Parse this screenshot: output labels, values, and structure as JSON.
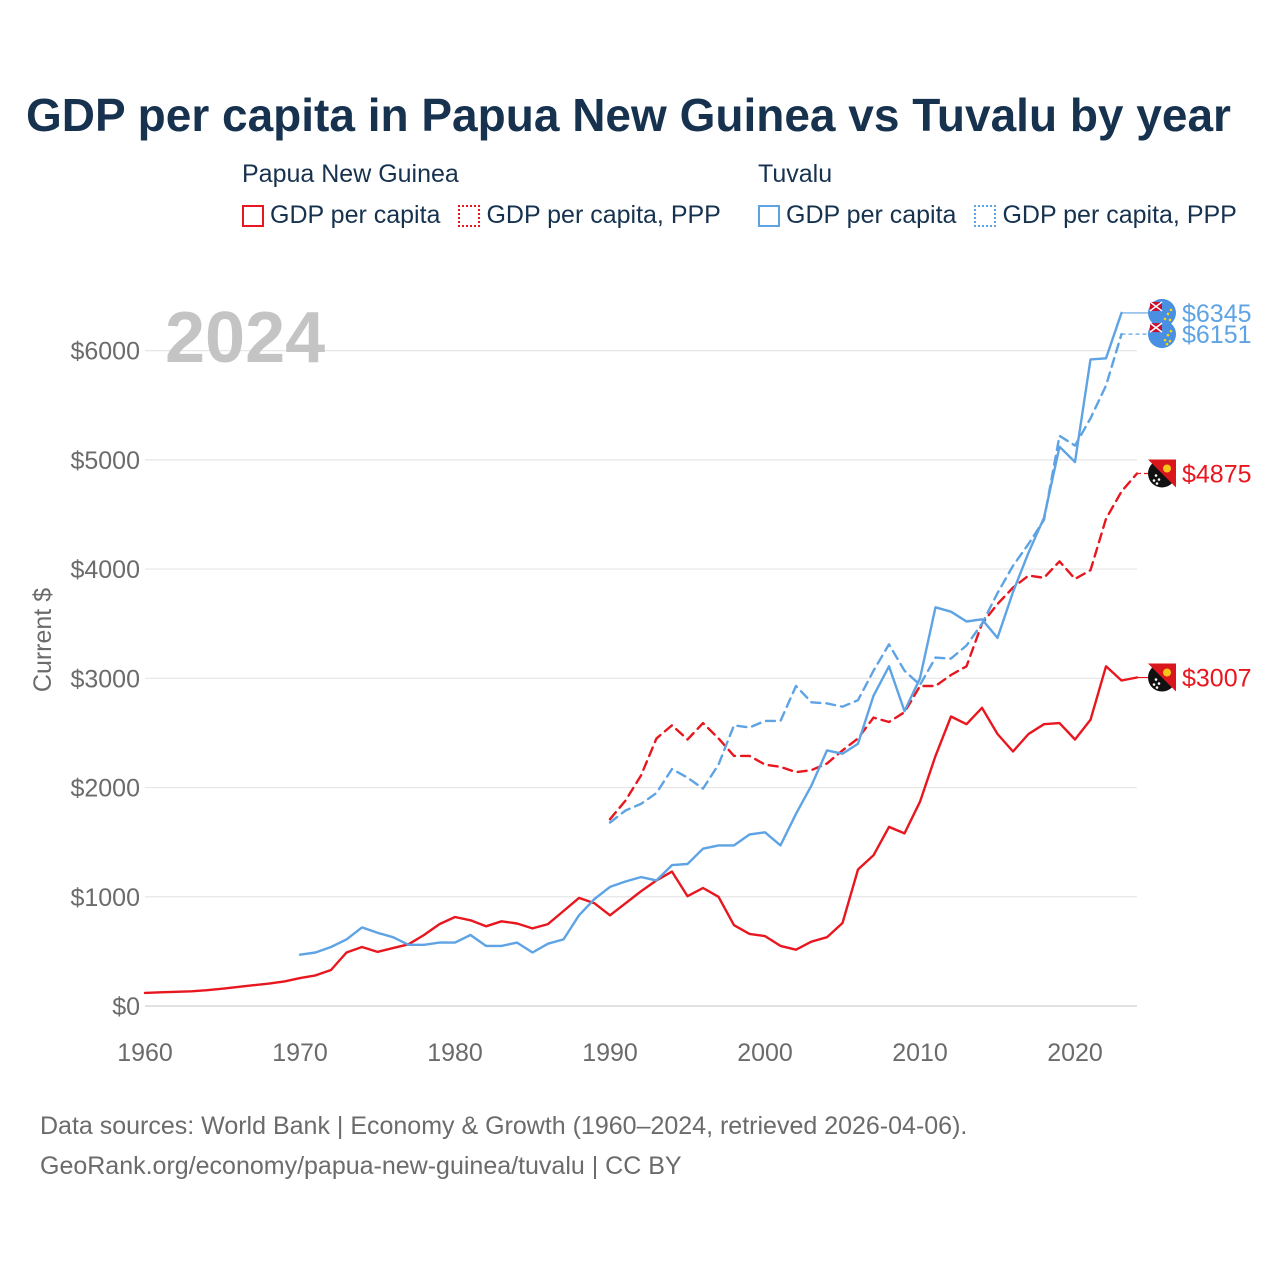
{
  "title": "GDP per capita in Papua New Guinea vs Tuvalu by year",
  "legend": {
    "groups": [
      {
        "country": "Papua New Guinea",
        "color": "#e8171f",
        "items": [
          {
            "label": "GDP per capita",
            "style": "solid"
          },
          {
            "label": "GDP per capita, PPP",
            "style": "dotted"
          }
        ]
      },
      {
        "country": "Tuvalu",
        "color": "#5ea3e4",
        "items": [
          {
            "label": "GDP per capita",
            "style": "solid"
          },
          {
            "label": "GDP per capita, PPP",
            "style": "dotted"
          }
        ]
      }
    ]
  },
  "year_watermark": "2024",
  "footer": {
    "line1": "Data sources: World Bank | Economy & Growth (1960–2024, retrieved 2026-04-06).",
    "line2": "GeoRank.org/economy/papua-new-guinea/tuvalu | CC BY"
  },
  "chart_data": {
    "type": "line",
    "title": "GDP per capita in Papua New Guinea vs Tuvalu by year",
    "xlabel": "",
    "ylabel": "Current $",
    "xlim": [
      1960,
      2024
    ],
    "ylim": [
      0,
      6500
    ],
    "xticks": [
      1960,
      1970,
      1980,
      1990,
      2000,
      2010,
      2020
    ],
    "xtick_labels": [
      "1960",
      "1970",
      "1980",
      "1990",
      "2000",
      "2010",
      "2020"
    ],
    "yticks": [
      0,
      1000,
      2000,
      3000,
      4000,
      5000,
      6000
    ],
    "ytick_labels": [
      "$0",
      "$1000",
      "$2000",
      "$3000",
      "$4000",
      "$5000",
      "$6000"
    ],
    "grid": true,
    "series": [
      {
        "name": "Papua New Guinea GDP per capita",
        "country": "Papua New Guinea",
        "color": "#e8171f",
        "dash": "solid",
        "end_label": "$3007",
        "x": [
          1960,
          1961,
          1962,
          1963,
          1964,
          1965,
          1966,
          1967,
          1968,
          1969,
          1970,
          1971,
          1972,
          1973,
          1974,
          1975,
          1976,
          1977,
          1978,
          1979,
          1980,
          1981,
          1982,
          1983,
          1984,
          1985,
          1986,
          1987,
          1988,
          1989,
          1990,
          1991,
          1992,
          1993,
          1994,
          1995,
          1996,
          1997,
          1998,
          1999,
          2000,
          2001,
          2002,
          2003,
          2004,
          2005,
          2006,
          2007,
          2008,
          2009,
          2010,
          2011,
          2012,
          2013,
          2014,
          2015,
          2016,
          2017,
          2018,
          2019,
          2020,
          2021,
          2022,
          2023,
          2024
        ],
        "y": [
          120,
          125,
          130,
          135,
          145,
          158,
          175,
          190,
          205,
          225,
          255,
          280,
          330,
          490,
          540,
          495,
          530,
          565,
          650,
          750,
          815,
          785,
          730,
          775,
          755,
          710,
          750,
          870,
          990,
          940,
          830,
          940,
          1050,
          1150,
          1230,
          1005,
          1080,
          1000,
          740,
          660,
          640,
          550,
          515,
          590,
          630,
          760,
          1250,
          1380,
          1640,
          1580,
          1870,
          2290,
          2650,
          2580,
          2730,
          2490,
          2330,
          2490,
          2580,
          2590,
          2440,
          2620,
          3110,
          2980,
          3007
        ]
      },
      {
        "name": "Papua New Guinea GDP per capita, PPP",
        "country": "Papua New Guinea",
        "color": "#e8171f",
        "dash": "dashed",
        "end_label": "$4875",
        "x": [
          1990,
          1991,
          1992,
          1993,
          1994,
          1995,
          1996,
          1997,
          1998,
          1999,
          2000,
          2001,
          2002,
          2003,
          2004,
          2005,
          2006,
          2007,
          2008,
          2009,
          2010,
          2011,
          2012,
          2013,
          2014,
          2015,
          2016,
          2017,
          2018,
          2019,
          2020,
          2021,
          2022,
          2023,
          2024
        ],
        "y": [
          1710,
          1880,
          2110,
          2450,
          2570,
          2440,
          2590,
          2450,
          2290,
          2290,
          2210,
          2190,
          2140,
          2160,
          2220,
          2340,
          2450,
          2640,
          2600,
          2690,
          2930,
          2930,
          3030,
          3110,
          3500,
          3680,
          3830,
          3940,
          3920,
          4070,
          3910,
          3990,
          4460,
          4710,
          4875
        ]
      },
      {
        "name": "Tuvalu GDP per capita",
        "country": "Tuvalu",
        "color": "#5ea3e4",
        "dash": "solid",
        "end_label": "$6345",
        "x": [
          1970,
          1971,
          1972,
          1973,
          1974,
          1975,
          1976,
          1977,
          1978,
          1979,
          1980,
          1981,
          1982,
          1983,
          1984,
          1985,
          1986,
          1987,
          1988,
          1989,
          1990,
          1991,
          1992,
          1993,
          1994,
          1995,
          1996,
          1997,
          1998,
          1999,
          2000,
          2001,
          2002,
          2003,
          2004,
          2005,
          2006,
          2007,
          2008,
          2009,
          2010,
          2011,
          2012,
          2013,
          2014,
          2015,
          2016,
          2017,
          2018,
          2019,
          2020,
          2021,
          2022,
          2023
        ],
        "y": [
          470,
          490,
          540,
          610,
          720,
          670,
          630,
          560,
          560,
          580,
          580,
          650,
          550,
          550,
          580,
          490,
          570,
          610,
          830,
          980,
          1090,
          1140,
          1180,
          1150,
          1290,
          1300,
          1440,
          1470,
          1470,
          1570,
          1590,
          1470,
          1760,
          2020,
          2340,
          2310,
          2400,
          2840,
          3110,
          2700,
          3000,
          3650,
          3610,
          3520,
          3540,
          3370,
          3790,
          4150,
          4470,
          5120,
          4980,
          5920,
          5930,
          6345
        ]
      },
      {
        "name": "Tuvalu GDP per capita, PPP",
        "country": "Tuvalu",
        "color": "#5ea3e4",
        "dash": "dashed",
        "end_label": "$6151",
        "x": [
          1990,
          1991,
          1992,
          1993,
          1994,
          1995,
          1996,
          1997,
          1998,
          1999,
          2000,
          2001,
          2002,
          2003,
          2004,
          2005,
          2006,
          2007,
          2008,
          2009,
          2010,
          2011,
          2012,
          2013,
          2014,
          2015,
          2016,
          2017,
          2018,
          2019,
          2020,
          2021,
          2022,
          2023
        ],
        "y": [
          1680,
          1790,
          1850,
          1950,
          2170,
          2090,
          1990,
          2210,
          2570,
          2550,
          2610,
          2610,
          2930,
          2780,
          2770,
          2740,
          2800,
          3070,
          3310,
          3070,
          2940,
          3190,
          3180,
          3300,
          3500,
          3780,
          4030,
          4230,
          4450,
          5220,
          5130,
          5380,
          5680,
          6151
        ]
      }
    ]
  }
}
